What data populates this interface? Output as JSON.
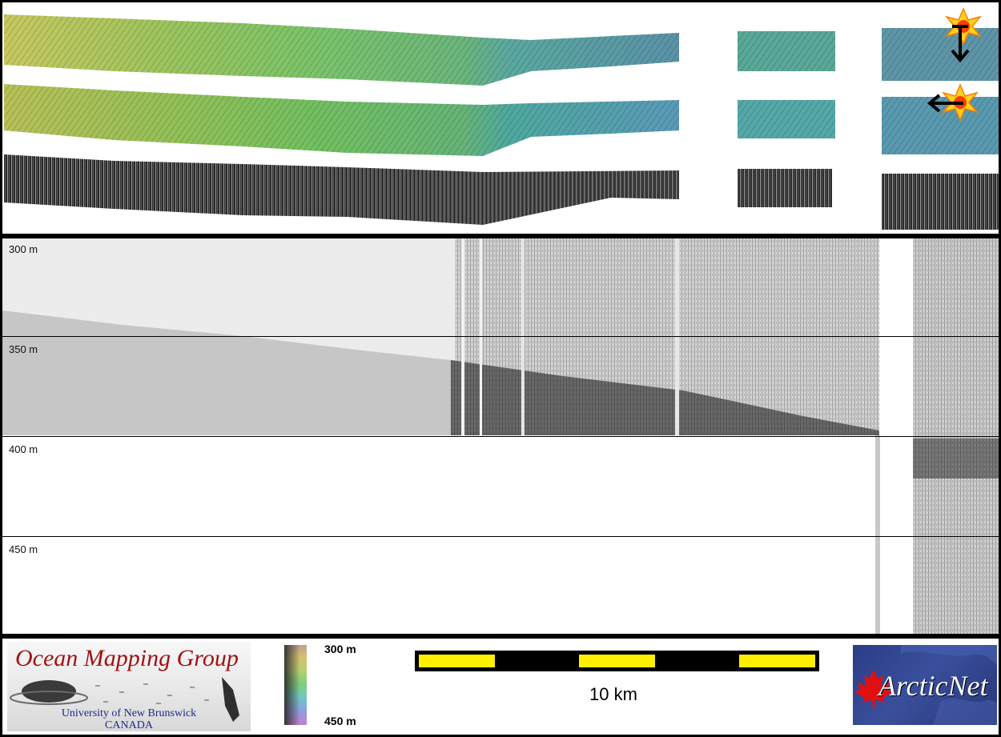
{
  "profile": {
    "depth_labels": [
      "300 m",
      "350 m",
      "400 m",
      "450 m"
    ]
  },
  "colorbar": {
    "top_label": "300 m",
    "bottom_label": "450 m"
  },
  "scale": {
    "label": "10 km"
  },
  "logos": {
    "omg": {
      "title": "Ocean Mapping Group",
      "line1": "University of New Brunswick",
      "line2": "CANADA"
    },
    "arcticnet": {
      "text": "ArcticNet"
    }
  },
  "colors": {
    "frame": "#000000",
    "scale_bar_fill": "#ffef00",
    "omg_title": "#a11212",
    "omg_subtitle": "#1c2a8a",
    "arcticnet_bg": "#2a3c86",
    "maple_leaf": "#e01010"
  },
  "icons": [
    "sun-icon",
    "arrow-down-icon",
    "arrow-left-icon",
    "maple-leaf-icon"
  ]
}
